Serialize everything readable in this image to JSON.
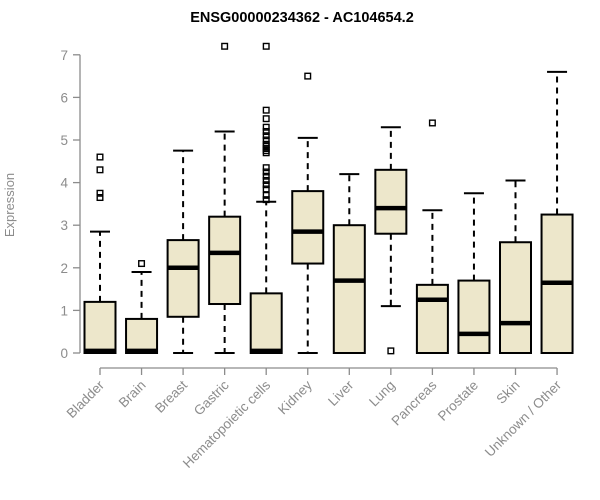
{
  "chart_data": {
    "type": "boxplot",
    "title": "ENSG00000234362 - AC104654.2",
    "ylabel": "Expression",
    "xlabel": "",
    "ylim": [
      0,
      7
    ],
    "yticks": [
      0,
      1,
      2,
      3,
      4,
      5,
      6,
      7
    ],
    "grid": false,
    "legend": "none",
    "colors": {
      "box_fill": "#EDE7CB",
      "box_border": "#000000",
      "median": "#000000",
      "whisker": "#000000",
      "outlier": "#000000",
      "axis": "#8C8C8C",
      "title": "#000000",
      "background": "#FFFFFF"
    },
    "categories": [
      "Bladder",
      "Brain",
      "Breast",
      "Gastric",
      "Hematopoietic cells",
      "Kidney",
      "Liver",
      "Lung",
      "Pancreas",
      "Prostate",
      "Skin",
      "Unknown / Other"
    ],
    "series": [
      {
        "name": "Bladder",
        "q1": 0,
        "median": 0.05,
        "q3": 1.2,
        "whisker_low": 0,
        "whisker_high": 2.85,
        "outliers": [
          3.65,
          3.75,
          4.3,
          4.6
        ]
      },
      {
        "name": "Brain",
        "q1": 0,
        "median": 0.05,
        "q3": 0.8,
        "whisker_low": 0,
        "whisker_high": 1.9,
        "outliers": [
          2.1
        ]
      },
      {
        "name": "Breast",
        "q1": 0.85,
        "median": 2.0,
        "q3": 2.65,
        "whisker_low": 0,
        "whisker_high": 4.75,
        "outliers": []
      },
      {
        "name": "Gastric",
        "q1": 1.15,
        "median": 2.35,
        "q3": 3.2,
        "whisker_low": 0,
        "whisker_high": 5.2,
        "outliers": [
          7.2
        ]
      },
      {
        "name": "Hematopoietic cells",
        "q1": 0,
        "median": 0.05,
        "q3": 1.4,
        "whisker_low": 0,
        "whisker_high": 3.55,
        "outliers": [
          3.6,
          3.7,
          3.85,
          3.95,
          4.05,
          4.15,
          4.25,
          4.35,
          4.7,
          4.75,
          4.8,
          4.85,
          4.9,
          5.0,
          5.1,
          5.2,
          5.3,
          5.5,
          5.7,
          7.2
        ]
      },
      {
        "name": "Kidney",
        "q1": 2.1,
        "median": 2.85,
        "q3": 3.8,
        "whisker_low": 0,
        "whisker_high": 5.05,
        "outliers": [
          6.5
        ]
      },
      {
        "name": "Liver",
        "q1": 0,
        "median": 1.7,
        "q3": 3.0,
        "whisker_low": 0,
        "whisker_high": 4.2,
        "outliers": []
      },
      {
        "name": "Lung",
        "q1": 2.8,
        "median": 3.4,
        "q3": 4.3,
        "whisker_low": 1.1,
        "whisker_high": 5.3,
        "outliers": [
          0.05
        ]
      },
      {
        "name": "Pancreas",
        "q1": 0,
        "median": 1.25,
        "q3": 1.6,
        "whisker_low": 0,
        "whisker_high": 3.35,
        "outliers": [
          5.4
        ]
      },
      {
        "name": "Prostate",
        "q1": 0,
        "median": 0.45,
        "q3": 1.7,
        "whisker_low": 0,
        "whisker_high": 3.75,
        "outliers": []
      },
      {
        "name": "Skin",
        "q1": 0,
        "median": 0.7,
        "q3": 2.6,
        "whisker_low": 0,
        "whisker_high": 4.05,
        "outliers": []
      },
      {
        "name": "Unknown / Other",
        "q1": 0,
        "median": 1.65,
        "q3": 3.25,
        "whisker_low": 0,
        "whisker_high": 6.6,
        "outliers": []
      }
    ]
  }
}
